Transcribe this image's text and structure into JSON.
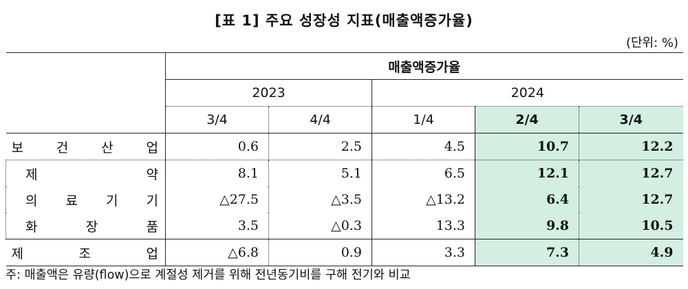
{
  "title": "[표 1] 주요 성장성 지표(매출액증가율)",
  "unit": "(단위: %)",
  "table": {
    "group_header": "매출액증가율",
    "years": [
      "2023",
      "2024"
    ],
    "quarters": [
      "3/4",
      "4/4",
      "1/4",
      "2/4",
      "3/4"
    ],
    "highlight_color": "#d3efe2",
    "rows": [
      {
        "label_chars": [
          "보",
          "건",
          "산",
          "업"
        ],
        "values": [
          "0.6",
          "2.5",
          "4.5",
          "10.7",
          "12.2"
        ]
      },
      {
        "label_chars": [
          "제",
          "약"
        ],
        "values": [
          "8.1",
          "5.1",
          "6.5",
          "12.1",
          "12.7"
        ]
      },
      {
        "label_chars": [
          "의",
          "료",
          "기",
          "기"
        ],
        "values": [
          "△27.5",
          "△3.5",
          "△13.2",
          "6.4",
          "12.7"
        ]
      },
      {
        "label_chars": [
          "화",
          "장",
          "품"
        ],
        "values": [
          "3.5",
          "△0.3",
          "13.3",
          "9.8",
          "10.5"
        ]
      },
      {
        "label_chars": [
          "제",
          "조",
          "업"
        ],
        "values": [
          "△6.8",
          "0.9",
          "3.3",
          "7.3",
          "4.9"
        ]
      }
    ]
  },
  "note": "주: 매출액은 유량(flow)으로 계절성 제거를 위해 전년동기비를 구해 전기와 비교"
}
